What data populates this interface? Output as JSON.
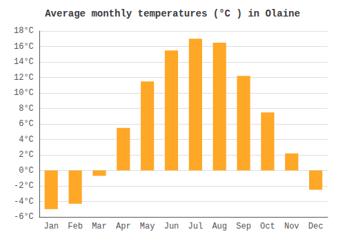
{
  "chart_data": {
    "type": "bar",
    "title": "Average monthly temperatures (°C ) in Olaine",
    "categories": [
      "Jan",
      "Feb",
      "Mar",
      "Apr",
      "May",
      "Jun",
      "Jul",
      "Aug",
      "Sep",
      "Oct",
      "Nov",
      "Dec"
    ],
    "values": [
      -5.0,
      -4.3,
      -0.7,
      5.5,
      11.5,
      15.5,
      17.0,
      16.5,
      12.2,
      7.5,
      2.2,
      -2.5
    ],
    "color": "#FFA726",
    "ylim": [
      -6,
      18
    ],
    "yticks": [
      {
        "value": -6,
        "label": "-6°C"
      },
      {
        "value": -4,
        "label": "-4°C"
      },
      {
        "value": -2,
        "label": "-2°C"
      },
      {
        "value": 0,
        "label": "0°C"
      },
      {
        "value": 2,
        "label": "2°C"
      },
      {
        "value": 4,
        "label": "4°C"
      },
      {
        "value": 6,
        "label": "6°C"
      },
      {
        "value": 8,
        "label": "8°C"
      },
      {
        "value": 10,
        "label": "10°C"
      },
      {
        "value": 12,
        "label": "12°C"
      },
      {
        "value": 14,
        "label": "14°C"
      },
      {
        "value": 16,
        "label": "16°C"
      },
      {
        "value": 18,
        "label": "18°C"
      }
    ],
    "grid": true
  }
}
